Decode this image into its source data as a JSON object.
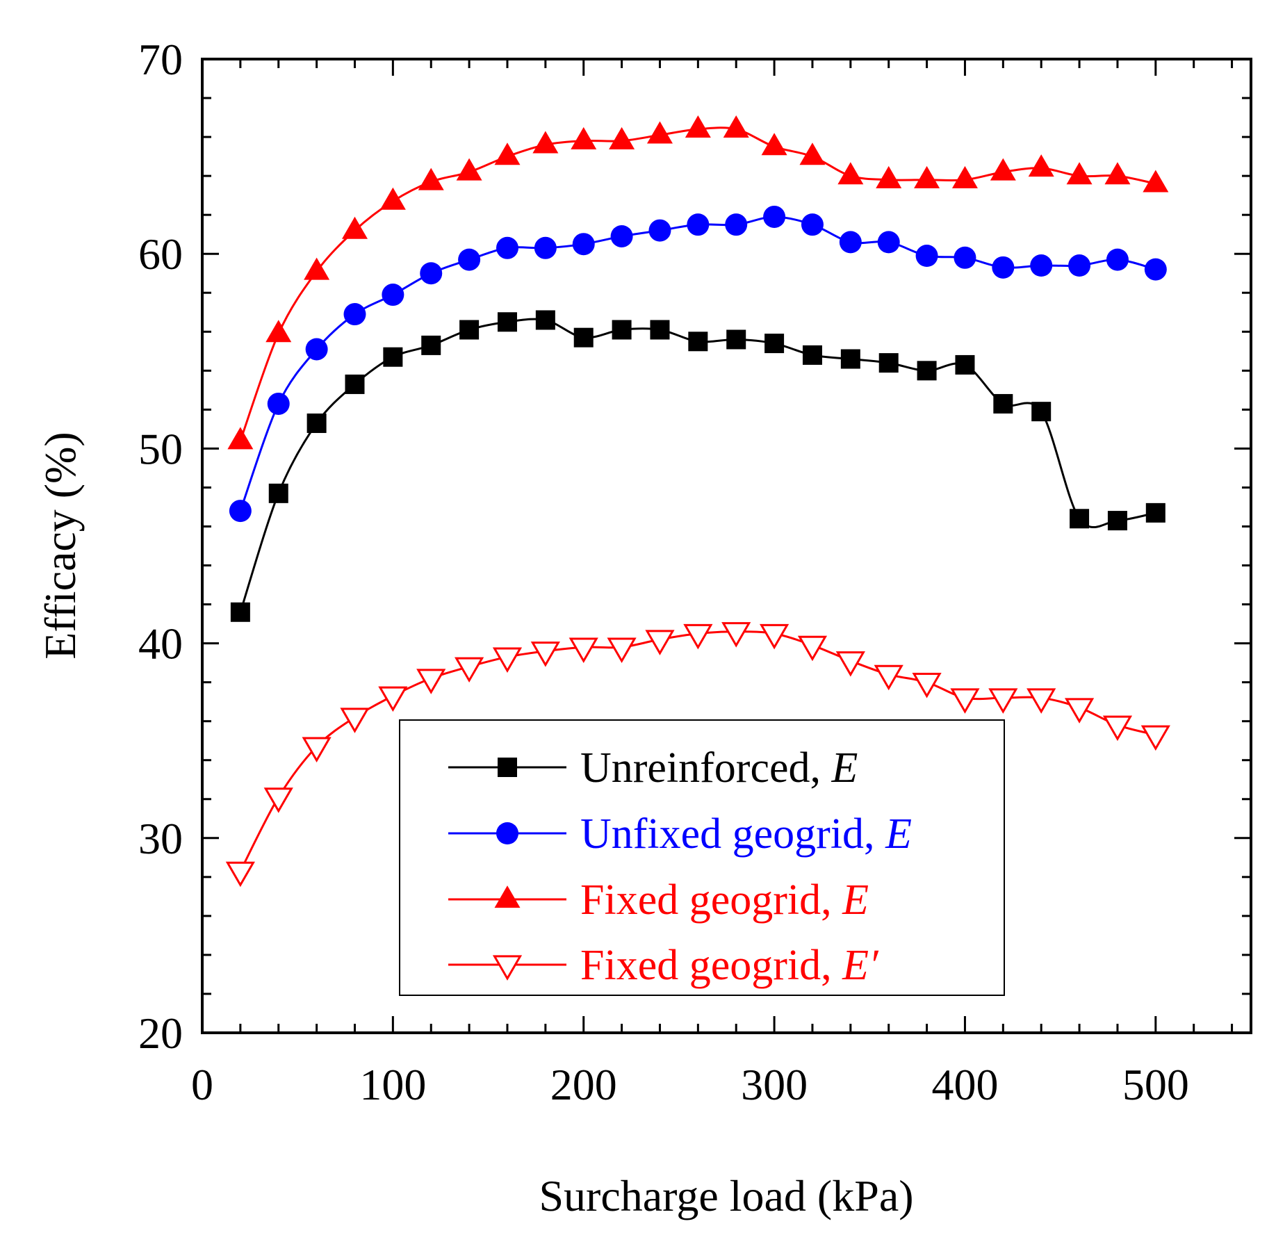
{
  "chart_data": {
    "type": "line",
    "xlabel": "Surcharge load (kPa)",
    "ylabel": "Efficacy (%)",
    "xlim": [
      0,
      550
    ],
    "ylim": [
      20,
      70
    ],
    "xticks": [
      0,
      100,
      200,
      300,
      400,
      500
    ],
    "yticks": [
      20,
      30,
      40,
      50,
      60,
      70
    ],
    "xtick_labels": [
      "0",
      "100",
      "200",
      "300",
      "400",
      "500"
    ],
    "ytick_labels": [
      "20",
      "30",
      "40",
      "50",
      "60",
      "70"
    ],
    "x_minor_step": 20,
    "y_minor_step": 2,
    "grid": false,
    "legend_position": "lower-center",
    "series": [
      {
        "name": "Unreinforced, E",
        "label_main": "Unreinforced, ",
        "label_var": "E",
        "color": "#000000",
        "marker": "filled-square",
        "x": [
          20,
          40,
          60,
          80,
          100,
          120,
          140,
          160,
          180,
          200,
          220,
          240,
          260,
          280,
          300,
          320,
          340,
          360,
          380,
          400,
          420,
          440,
          460,
          480,
          500
        ],
        "y": [
          41.6,
          47.7,
          51.3,
          53.3,
          54.7,
          55.3,
          56.1,
          56.5,
          56.6,
          55.7,
          56.1,
          56.1,
          55.5,
          55.6,
          55.4,
          54.8,
          54.6,
          54.4,
          54.0,
          54.3,
          52.3,
          51.9,
          46.4,
          46.3,
          46.7
        ]
      },
      {
        "name": "Unfixed geogrid, E",
        "label_main": "Unfixed geogrid, ",
        "label_var": "E",
        "color": "#0000ff",
        "marker": "filled-circle",
        "x": [
          20,
          40,
          60,
          80,
          100,
          120,
          140,
          160,
          180,
          200,
          220,
          240,
          260,
          280,
          300,
          320,
          340,
          360,
          380,
          400,
          420,
          440,
          460,
          480,
          500
        ],
        "y": [
          46.8,
          52.3,
          55.1,
          56.9,
          57.9,
          59.0,
          59.7,
          60.3,
          60.3,
          60.5,
          60.9,
          61.2,
          61.5,
          61.5,
          61.9,
          61.5,
          60.6,
          60.6,
          59.9,
          59.8,
          59.3,
          59.4,
          59.4,
          59.7,
          59.2
        ]
      },
      {
        "name": "Fixed geogrid, E",
        "label_main": "Fixed geogrid, ",
        "label_var": "E",
        "color": "#ff0000",
        "marker": "filled-triangle-up",
        "x": [
          20,
          40,
          60,
          80,
          100,
          120,
          140,
          160,
          180,
          200,
          220,
          240,
          260,
          280,
          300,
          320,
          340,
          360,
          380,
          400,
          420,
          440,
          460,
          480,
          500
        ],
        "y": [
          50.4,
          55.9,
          59.1,
          61.2,
          62.7,
          63.7,
          64.2,
          65.0,
          65.6,
          65.8,
          65.8,
          66.1,
          66.4,
          66.4,
          65.5,
          65.0,
          64.0,
          63.8,
          63.8,
          63.8,
          64.2,
          64.4,
          64.0,
          64.0,
          63.6
        ]
      },
      {
        "name": "Fixed geogrid, E′",
        "label_main": "Fixed geogrid, ",
        "label_var": "E′",
        "color": "#ff0000",
        "marker": "open-triangle-down",
        "x": [
          20,
          40,
          60,
          80,
          100,
          120,
          140,
          160,
          180,
          200,
          220,
          240,
          260,
          280,
          300,
          320,
          340,
          360,
          380,
          400,
          420,
          440,
          460,
          480,
          500
        ],
        "y": [
          28.3,
          32.1,
          34.7,
          36.2,
          37.3,
          38.2,
          38.8,
          39.3,
          39.6,
          39.8,
          39.8,
          40.2,
          40.5,
          40.6,
          40.5,
          39.9,
          39.1,
          38.4,
          38.0,
          37.2,
          37.2,
          37.2,
          36.7,
          35.8,
          35.3
        ]
      }
    ]
  }
}
